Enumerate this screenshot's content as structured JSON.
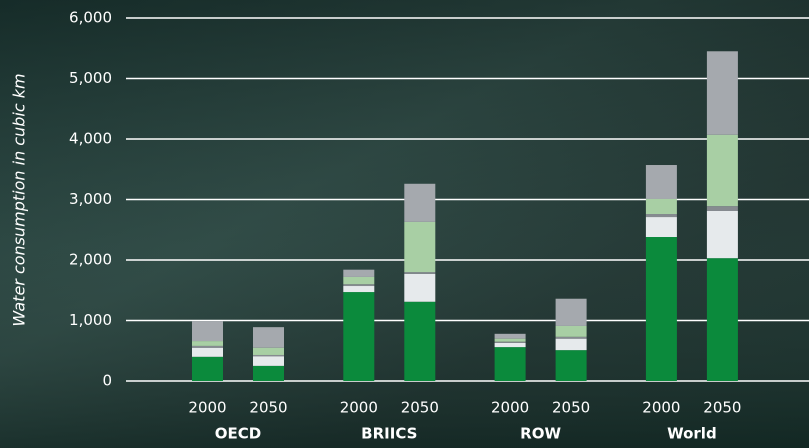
{
  "chart_data": {
    "type": "stacked_bar",
    "y_label": "Water consumption in cubic km",
    "categories": [
      "2000",
      "2050",
      "2000",
      "2050",
      "2000",
      "2050",
      "2000",
      "2050"
    ],
    "groups": [
      "OECD",
      "BRIICS",
      "ROW",
      "World"
    ],
    "series": [
      {
        "color": "#0b8a3c",
        "values": [
          400,
          250,
          1470,
          1310,
          560,
          510,
          2380,
          2030
        ]
      },
      {
        "color": "#e6eaec",
        "values": [
          150,
          160,
          100,
          460,
          70,
          190,
          330,
          780
        ]
      },
      {
        "color": "#868b90",
        "values": [
          30,
          20,
          30,
          30,
          20,
          30,
          50,
          80
        ]
      },
      {
        "color": "#a8cfa4",
        "values": [
          80,
          120,
          120,
          830,
          50,
          180,
          250,
          1180
        ]
      },
      {
        "color": "#a5a9ae",
        "values": [
          330,
          340,
          120,
          630,
          80,
          450,
          560,
          1380
        ]
      }
    ],
    "ylim": [
      0,
      6000
    ],
    "yticks": [
      0,
      {
        "value": 1000,
        "label": "1,000"
      },
      {
        "value": 2000,
        "label": "2,000"
      },
      {
        "value": 3000,
        "label": "3,000"
      },
      {
        "value": 4000,
        "label": "4,000"
      },
      {
        "value": 5000,
        "label": "5,000"
      },
      {
        "value": 6000,
        "label": "6,000"
      }
    ],
    "grid": true
  }
}
